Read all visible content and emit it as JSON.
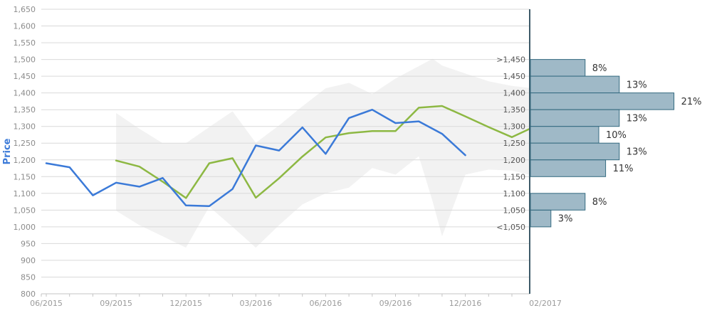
{
  "chart_data": {
    "type": "line",
    "title": "",
    "ylabel": "Price",
    "legend": "none",
    "grid": "horizontal-only",
    "y_axis": {
      "min": 800,
      "max": 1650,
      "step": 50,
      "tick_labels": [
        "800",
        "850",
        "900",
        "950",
        "1,000",
        "1,050",
        "1,100",
        "1,150",
        "1,200",
        "1,250",
        "1,300",
        "1,350",
        "1,400",
        "1,450",
        "1,500",
        "1,550",
        "1,600",
        "1,650"
      ]
    },
    "x_axis": {
      "start_month": "06/2015",
      "minor_tick_months": 21,
      "tick_labels": [
        {
          "m": 0,
          "label": "06/2015"
        },
        {
          "m": 3,
          "label": "09/2015"
        },
        {
          "m": 6,
          "label": "12/2015"
        },
        {
          "m": 9,
          "label": "03/2016"
        },
        {
          "m": 12,
          "label": "06/2016"
        },
        {
          "m": 15,
          "label": "09/2016"
        },
        {
          "m": 18,
          "label": "12/2016"
        }
      ],
      "histogram_label": "02/2017"
    },
    "band": {
      "name": "high-low-range",
      "points": [
        {
          "m": 3,
          "top": 1340,
          "bottom": 1048
        },
        {
          "m": 4,
          "top": 1293,
          "bottom": 1005
        },
        {
          "m": 5,
          "top": 1250,
          "bottom": 972
        },
        {
          "m": 6,
          "top": 1250,
          "bottom": 938
        },
        {
          "m": 7,
          "top": 1298,
          "bottom": 1060
        },
        {
          "m": 8,
          "top": 1345,
          "bottom": 1000
        },
        {
          "m": 9,
          "top": 1251,
          "bottom": 938
        },
        {
          "m": 10,
          "top": 1303,
          "bottom": 1005
        },
        {
          "m": 11,
          "top": 1360,
          "bottom": 1067
        },
        {
          "m": 12,
          "top": 1414,
          "bottom": 1100
        },
        {
          "m": 13,
          "top": 1430,
          "bottom": 1117
        },
        {
          "m": 14,
          "top": 1397,
          "bottom": 1176
        },
        {
          "m": 15,
          "top": 1443,
          "bottom": 1156
        },
        {
          "m": 16,
          "top": 1480,
          "bottom": 1211
        },
        {
          "m": 16.6,
          "top": 1502,
          "bottom": 1075
        },
        {
          "m": 17,
          "top": 1482,
          "bottom": 972
        },
        {
          "m": 18,
          "top": 1458,
          "bottom": 1156
        },
        {
          "m": 19,
          "top": 1435,
          "bottom": 1171
        },
        {
          "m": 20,
          "top": 1421,
          "bottom": 1168
        },
        {
          "m": 20.77,
          "top": 1415,
          "bottom": 1155
        }
      ]
    },
    "series": [
      {
        "name": "green",
        "points": [
          {
            "m": 3,
            "v": 1198
          },
          {
            "m": 4,
            "v": 1180
          },
          {
            "m": 5,
            "v": 1135
          },
          {
            "m": 6,
            "v": 1086
          },
          {
            "m": 7,
            "v": 1190
          },
          {
            "m": 8,
            "v": 1205
          },
          {
            "m": 9,
            "v": 1087
          },
          {
            "m": 10,
            "v": 1145
          },
          {
            "m": 11,
            "v": 1210
          },
          {
            "m": 12,
            "v": 1267
          },
          {
            "m": 13,
            "v": 1280
          },
          {
            "m": 14,
            "v": 1286
          },
          {
            "m": 15,
            "v": 1286
          },
          {
            "m": 16,
            "v": 1356
          },
          {
            "m": 17,
            "v": 1361
          },
          {
            "m": 18,
            "v": 1330
          },
          {
            "m": 19,
            "v": 1298
          },
          {
            "m": 20,
            "v": 1268
          },
          {
            "m": 20.77,
            "v": 1293
          }
        ]
      },
      {
        "name": "blue",
        "points": [
          {
            "m": 0,
            "v": 1190
          },
          {
            "m": 1,
            "v": 1178
          },
          {
            "m": 2,
            "v": 1094
          },
          {
            "m": 3,
            "v": 1132
          },
          {
            "m": 4,
            "v": 1120
          },
          {
            "m": 5,
            "v": 1146
          },
          {
            "m": 6,
            "v": 1064
          },
          {
            "m": 7,
            "v": 1062
          },
          {
            "m": 8,
            "v": 1113
          },
          {
            "m": 9,
            "v": 1243
          },
          {
            "m": 10,
            "v": 1228
          },
          {
            "m": 11,
            "v": 1297
          },
          {
            "m": 12,
            "v": 1218
          },
          {
            "m": 13,
            "v": 1325
          },
          {
            "m": 14,
            "v": 1350
          },
          {
            "m": 15,
            "v": 1310
          },
          {
            "m": 16,
            "v": 1315
          },
          {
            "m": 17,
            "v": 1278
          },
          {
            "m": 18,
            "v": 1214
          }
        ]
      }
    ],
    "histogram": {
      "boundary_labels": [
        {
          "v": 1500,
          "label": ">1,450"
        },
        {
          "v": 1450,
          "label": "1,450"
        },
        {
          "v": 1400,
          "label": "1,400"
        },
        {
          "v": 1350,
          "label": "1,350"
        },
        {
          "v": 1300,
          "label": "1,300"
        },
        {
          "v": 1250,
          "label": "1,250"
        },
        {
          "v": 1200,
          "label": "1,200"
        },
        {
          "v": 1150,
          "label": "1,150"
        },
        {
          "v": 1100,
          "label": "1,100"
        },
        {
          "v": 1050,
          "label": "1,050"
        },
        {
          "v": 1000,
          "label": "<1,050"
        }
      ],
      "bins": [
        {
          "from": 1500,
          "to": 1450,
          "pct": 8,
          "pct_label": "8%"
        },
        {
          "from": 1450,
          "to": 1400,
          "pct": 13,
          "pct_label": "13%"
        },
        {
          "from": 1400,
          "to": 1350,
          "pct": 21,
          "pct_label": "21%"
        },
        {
          "from": 1350,
          "to": 1300,
          "pct": 13,
          "pct_label": "13%"
        },
        {
          "from": 1300,
          "to": 1250,
          "pct": 10,
          "pct_label": "10%"
        },
        {
          "from": 1250,
          "to": 1200,
          "pct": 13,
          "pct_label": "13%"
        },
        {
          "from": 1200,
          "to": 1150,
          "pct": 11,
          "pct_label": "11%"
        },
        {
          "from": 1150,
          "to": 1100,
          "pct": 0,
          "pct_label": ""
        },
        {
          "from": 1100,
          "to": 1050,
          "pct": 8,
          "pct_label": "8%"
        },
        {
          "from": 1050,
          "to": 1000,
          "pct": 3,
          "pct_label": "3%"
        }
      ]
    },
    "colors": {
      "blue_line": "#3b7ad8",
      "green_line": "#8db843",
      "band_fill": "#f2f2f2",
      "grid": "#d9d9d9",
      "axis_line": "#c4c4c4",
      "x_tick_label": "#9b9b9b",
      "y_tick_label": "#8c8c8c",
      "ylabel_title": "#3b7ad8",
      "hist_axis": "#3d5a68",
      "bar_fill": "#9fb9c7",
      "bar_border": "#346a80",
      "bin_label": "#555555",
      "pct_label": "#333333"
    }
  }
}
